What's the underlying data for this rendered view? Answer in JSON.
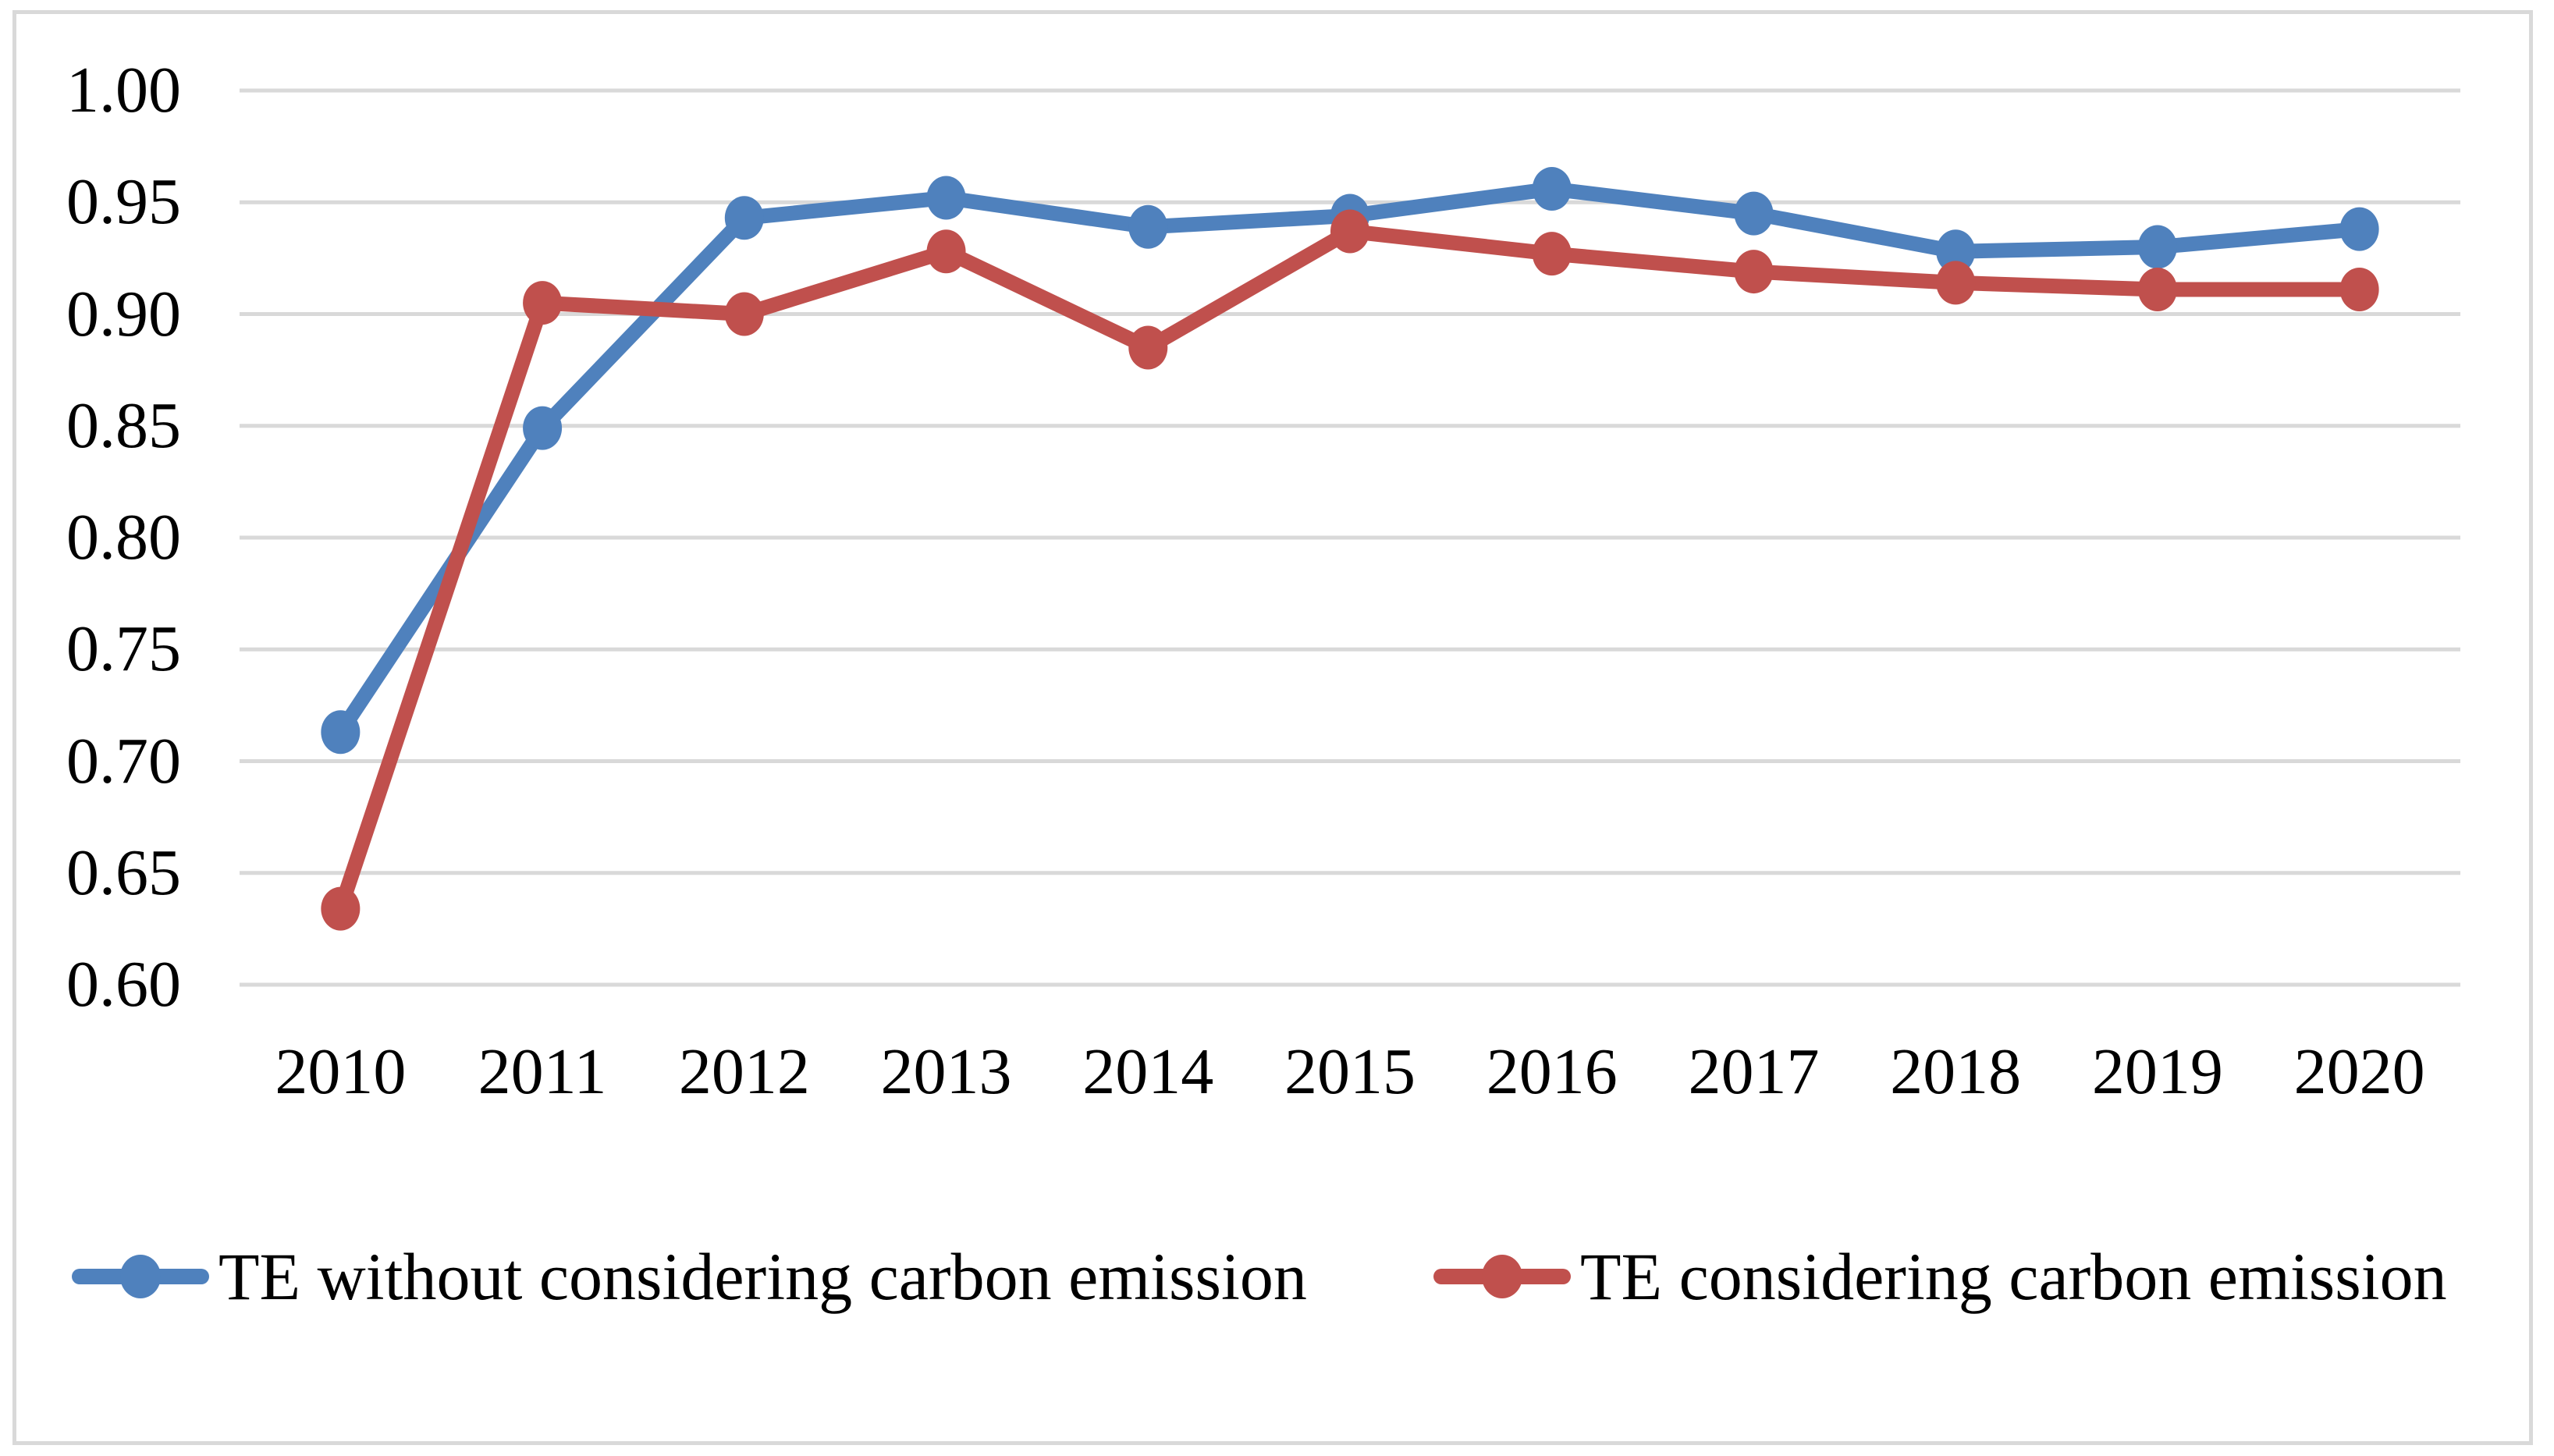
{
  "chart_data": {
    "type": "line",
    "categories": [
      "2010",
      "2011",
      "2012",
      "2013",
      "2014",
      "2015",
      "2016",
      "2017",
      "2018",
      "2019",
      "2020"
    ],
    "series": [
      {
        "name": "TE without considering carbon emission",
        "color": "#4F81BD",
        "values": [
          0.713,
          0.849,
          0.943,
          0.952,
          0.939,
          0.944,
          0.956,
          0.945,
          0.928,
          0.93,
          0.938
        ]
      },
      {
        "name": "TE considering carbon emission",
        "color": "#C0504D",
        "values": [
          0.634,
          0.905,
          0.9,
          0.928,
          0.885,
          0.937,
          0.927,
          0.919,
          0.914,
          0.911,
          0.911
        ]
      }
    ],
    "ylim": [
      0.6,
      1.0
    ],
    "ytick_step": 0.05,
    "yticks": [
      "1.00",
      "0.95",
      "0.90",
      "0.85",
      "0.80",
      "0.75",
      "0.70",
      "0.65",
      "0.60"
    ],
    "xlabel": "",
    "ylabel": "",
    "title": "",
    "grid": "horizontal",
    "legend_position": "bottom",
    "colors": {
      "gridline": "#D9D9D9",
      "frame_border": "#D9D9D9",
      "background": "#FFFFFF",
      "text": "#000000"
    }
  }
}
